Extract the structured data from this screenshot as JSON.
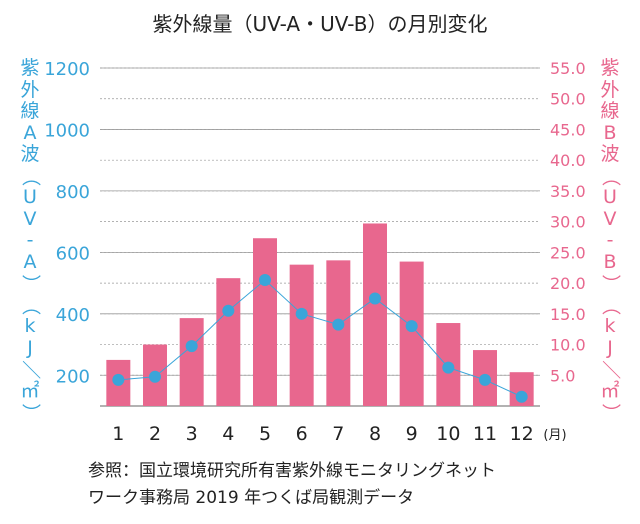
{
  "title": "紫外線量（UV-A・UV-B）の月別変化",
  "left_axis_label": "紫外線A波（UV-A）（kJ／㎡）",
  "right_axis_label": "紫外線B波（UV-B）（kJ／㎡）",
  "month_unit": "(月)",
  "source_lines": [
    "参照：国立環境研究所有害紫外線モニタリングネット",
    "ワーク事務局 2019 年つくば局観測データ"
  ],
  "colors": {
    "uva": "#3aa5d9",
    "uvb": "#e8678e",
    "grid": "#999999",
    "text": "#222222"
  },
  "chart_data": {
    "type": "bar+line",
    "categories": [
      "1",
      "2",
      "3",
      "4",
      "5",
      "6",
      "7",
      "8",
      "9",
      "10",
      "11",
      "12"
    ],
    "series": [
      {
        "name": "UV-A",
        "type": "line",
        "axis": "left",
        "values": [
          185,
          195,
          295,
          410,
          510,
          400,
          365,
          450,
          360,
          225,
          185,
          130
        ]
      },
      {
        "name": "UV-B",
        "type": "bar",
        "axis": "right",
        "values": [
          7.5,
          10.0,
          14.3,
          20.8,
          27.3,
          23.0,
          23.7,
          29.7,
          23.5,
          13.5,
          9.1,
          5.5
        ]
      }
    ],
    "left_axis": {
      "range": [
        100,
        1200
      ],
      "ticks": [
        200,
        400,
        600,
        800,
        1000,
        1200
      ]
    },
    "right_axis": {
      "range": [
        0,
        55
      ],
      "ticks": [
        "5.0",
        "10.0",
        "15.0",
        "20.0",
        "25.0",
        "30.0",
        "35.0",
        "40.0",
        "45.0",
        "50.0",
        "55.0"
      ]
    },
    "grid": true
  }
}
